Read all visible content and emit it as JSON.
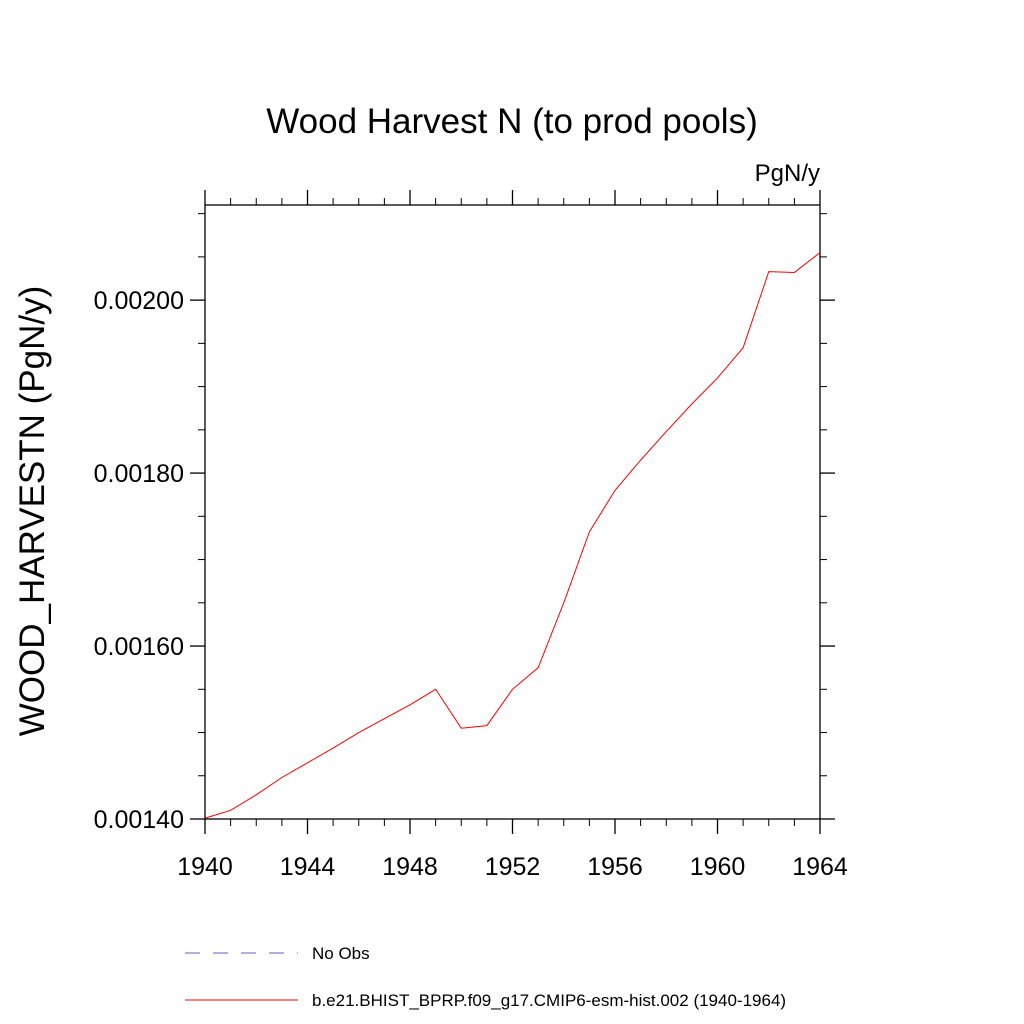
{
  "chart_data": {
    "type": "line",
    "title": "Wood Harvest N (to prod pools)",
    "units_label": "PgN/y",
    "ylabel": "WOOD_HARVESTN  (PgN/y)",
    "xlabel": "",
    "xlim": [
      1940,
      1964
    ],
    "ylim": [
      0.0014,
      0.00211
    ],
    "x_ticks": [
      1940,
      1944,
      1948,
      1952,
      1956,
      1960,
      1964
    ],
    "x_tick_labels": [
      "1940",
      "1944",
      "1948",
      "1952",
      "1956",
      "1960",
      "1964"
    ],
    "y_ticks": [
      0.0014,
      0.0016,
      0.0018,
      0.002
    ],
    "y_tick_labels": [
      "0.00140",
      "0.00160",
      "0.00180",
      "0.00200"
    ],
    "grid": false,
    "legend_position": "bottom",
    "series": [
      {
        "name": "No Obs",
        "color": "#6a5acd",
        "style": "dashed",
        "x": [],
        "values": []
      },
      {
        "name": "b.e21.BHIST_BPRP.f09_g17.CMIP6-esm-hist.002 (1940-1964)",
        "color": "#ff0000",
        "style": "solid",
        "x": [
          1940,
          1941,
          1942,
          1943,
          1944,
          1945,
          1946,
          1947,
          1948,
          1949,
          1950,
          1951,
          1952,
          1953,
          1954,
          1955,
          1956,
          1957,
          1958,
          1959,
          1960,
          1961,
          1962,
          1963,
          1964
        ],
        "values": [
          0.001401,
          0.00141,
          0.001428,
          0.001448,
          0.001465,
          0.001482,
          0.0015,
          0.001516,
          0.001532,
          0.00155,
          0.001505,
          0.001508,
          0.00155,
          0.001575,
          0.00165,
          0.001732,
          0.00178,
          0.001815,
          0.001848,
          0.00188,
          0.00191,
          0.001945,
          0.002033,
          0.002032,
          0.002055
        ]
      }
    ]
  }
}
